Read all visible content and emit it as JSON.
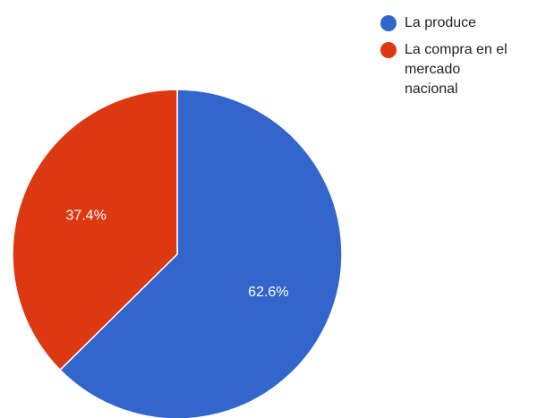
{
  "chart_data": {
    "type": "pie",
    "series": [
      {
        "values": [
          62.6,
          37.4
        ]
      }
    ],
    "categories": [
      "La produce",
      "La compra en el mercado nacional"
    ],
    "slices": [
      {
        "label": "La produce",
        "value": 62.6,
        "display": "62.6%",
        "color": "#3366cc"
      },
      {
        "label": "La compra en el mercado nacional",
        "value": 37.4,
        "display": "37.4%",
        "color": "#dc3912"
      }
    ],
    "legend": {
      "placement": "top-right",
      "entries": [
        {
          "lines": [
            "La produce"
          ],
          "color": "#3366cc"
        },
        {
          "lines": [
            "La compra en el",
            "mercado",
            "nacional"
          ],
          "color": "#dc3912"
        }
      ]
    },
    "start_angle_deg": 0,
    "direction": "clockwise"
  }
}
